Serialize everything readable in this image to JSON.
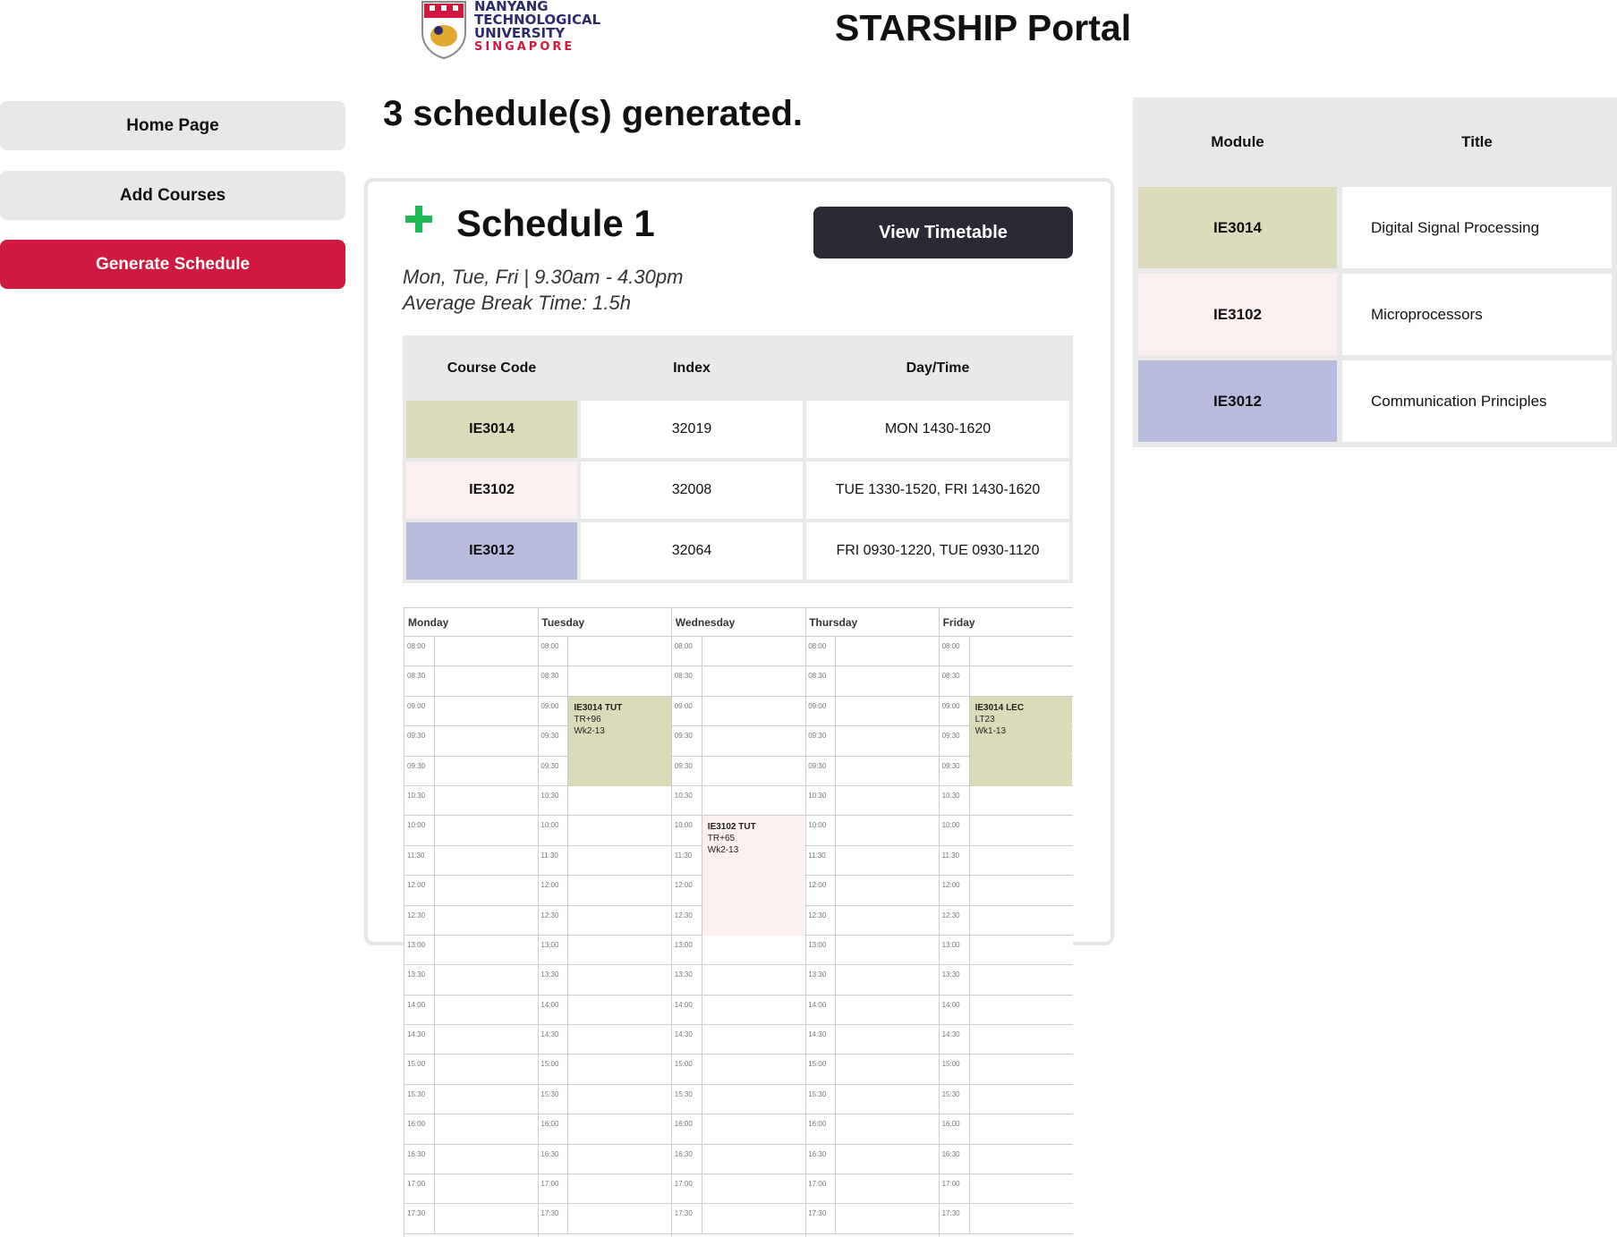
{
  "header": {
    "logo_lines": [
      "NANYANG",
      "TECHNOLOGICAL",
      "UNIVERSITY",
      "SINGAPORE"
    ],
    "app_title": "STARSHIP Portal"
  },
  "sidebar": {
    "items": [
      {
        "label": "Home Page"
      },
      {
        "label": "Add Courses"
      },
      {
        "label": "Generate Schedule",
        "active": true
      }
    ]
  },
  "main": {
    "heading": "3 schedule(s) generated.",
    "schedule": {
      "title": "Schedule 1",
      "view_button": "View Timetable",
      "days_time": "Mon, Tue, Fri | 9.30am - 4.30pm",
      "break_time": "Average Break Time: 1.5h",
      "table": {
        "headers": [
          "Course Code",
          "Index",
          "Day/Time"
        ],
        "rows": [
          {
            "code": "IE3014",
            "index": "32019",
            "daytime": "MON 1430-1620",
            "color": "#dbdbbc"
          },
          {
            "code": "IE3102",
            "index": "32008",
            "daytime": "TUE 1330-1520, FRI 1430-1620",
            "color": "#fcefef"
          },
          {
            "code": "IE3012",
            "index": "32064",
            "daytime": "FRI 0930-1220, TUE 0930-1120",
            "color": "#b8bbdb"
          }
        ]
      }
    },
    "timetable": {
      "days": [
        "Monday",
        "Tuesday",
        "Wednesday",
        "Thursday",
        "Friday"
      ],
      "times": [
        "08:00",
        "08:30",
        "09:00",
        "09:30",
        "09:30",
        "10:30",
        "10:00",
        "11:30",
        "12:00",
        "12:30",
        "13:00",
        "13:30",
        "14:00",
        "14:30",
        "15:00",
        "15:30",
        "16:00",
        "16:30",
        "17:00",
        "17:30"
      ],
      "events": [
        {
          "day": 1,
          "start_slot": 2,
          "slots": 3,
          "title": "IE3014 TUT",
          "venue": "TR+96",
          "weeks": "Wk2-13",
          "color": "#dbdbbc"
        },
        {
          "day": 4,
          "start_slot": 2,
          "slots": 3,
          "title": "IE3014 LEC",
          "venue": "LT23",
          "weeks": "Wk1-13",
          "color": "#dbdbbc"
        },
        {
          "day": 2,
          "start_slot": 6,
          "slots": 4,
          "title": "IE3102 TUT",
          "venue": "TR+65",
          "weeks": "Wk2-13",
          "color": "#fcefef"
        }
      ]
    }
  },
  "module_panel": {
    "headers": [
      "Module",
      "Title"
    ],
    "rows": [
      {
        "code": "IE3014",
        "title": "Digital Signal Processing",
        "color": "#dbdbbc"
      },
      {
        "code": "IE3102",
        "title": "Microprocessors",
        "color": "#fcefef"
      },
      {
        "code": "IE3012",
        "title": "Communication Principles",
        "color": "#b8bbdb"
      }
    ]
  },
  "colors": {
    "accent": "#d0193f",
    "dark_button": "#2b2933",
    "plus_icon": "#1db954"
  }
}
